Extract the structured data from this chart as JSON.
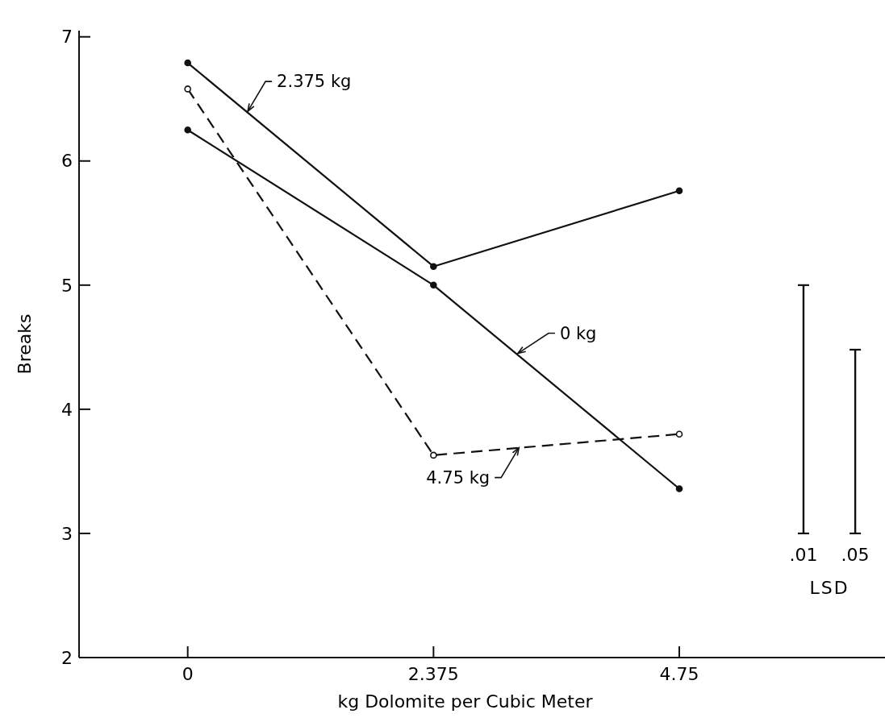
{
  "chart_data": {
    "type": "line",
    "xlabel": "kg Dolomite per Cubic Meter",
    "ylabel": "Breaks",
    "xlim": [
      -1.05,
      6.8
    ],
    "ylim": [
      2,
      7.05
    ],
    "xticks": [
      0,
      2.375,
      4.75
    ],
    "yticks": [
      2,
      3,
      4,
      5,
      6,
      7
    ],
    "grid": false,
    "marker": "circle",
    "series": [
      {
        "name": "2.375 kg",
        "color": "#111111",
        "x": [
          0,
          2.375,
          4.75
        ],
        "values": [
          6.79,
          5.15,
          5.76
        ],
        "line_style": "solid"
      },
      {
        "name": "0 kg",
        "color": "#111111",
        "x": [
          0,
          2.375,
          4.75
        ],
        "values": [
          6.25,
          5.0,
          3.36
        ],
        "line_style": "solid"
      },
      {
        "name": "4.75 kg",
        "color": "#111111",
        "x": [
          0,
          2.375,
          4.75
        ],
        "values": [
          6.58,
          3.63,
          3.8
        ],
        "line_style": "dashed"
      },
      {
        "type": "bar",
        "color": "#111111",
        "x": [
          5.95,
          6.45
        ],
        "values": [
          2.0,
          1.48
        ],
        "base": [
          3.0,
          3.0
        ]
      }
    ],
    "annotations": [
      {
        "text": ".01",
        "x": 5.95,
        "y": 3.0
      },
      {
        "text": ".05",
        "x": 6.45,
        "y": 3.0
      },
      "LSD"
    ]
  }
}
